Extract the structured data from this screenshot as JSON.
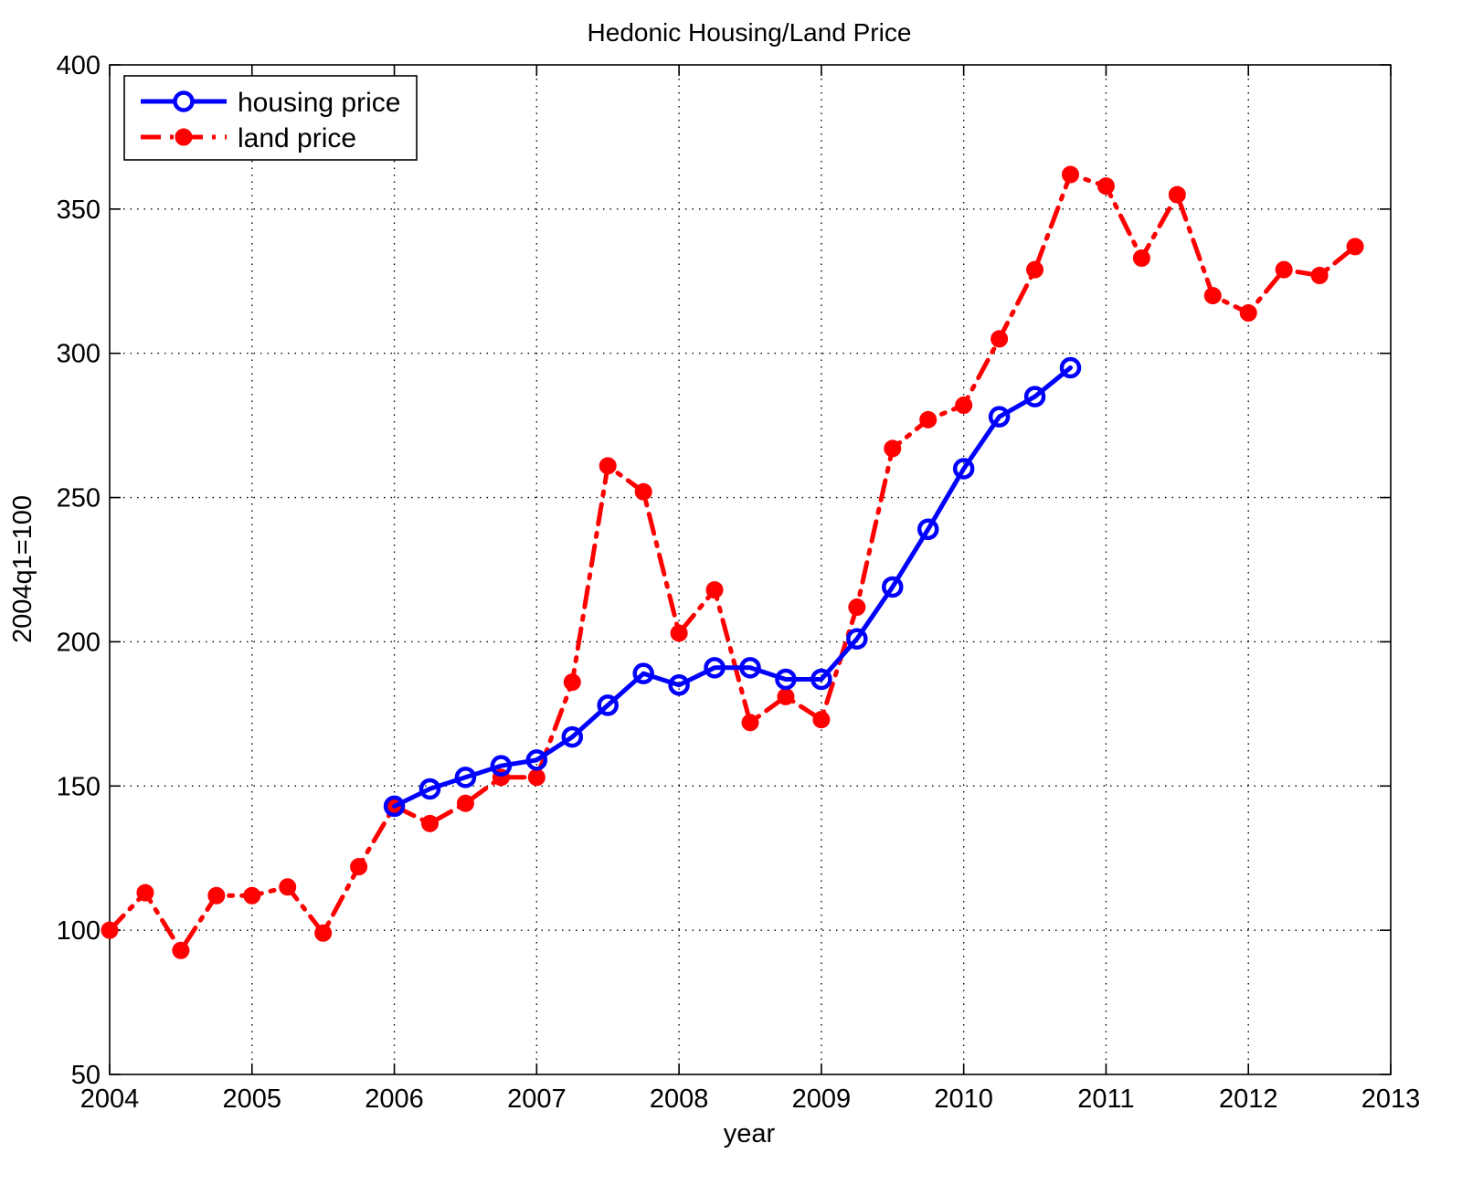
{
  "chart_data": {
    "type": "line",
    "title": "Hedonic Housing/Land Price",
    "xlabel": "year",
    "ylabel": "2004q1=100",
    "xlim": [
      2004,
      2013
    ],
    "ylim": [
      50,
      400
    ],
    "x_ticks": [
      2004,
      2005,
      2006,
      2007,
      2008,
      2009,
      2010,
      2011,
      2012,
      2013
    ],
    "y_ticks": [
      50,
      100,
      150,
      200,
      250,
      300,
      350,
      400
    ],
    "grid": true,
    "legend_position": "top-left",
    "series": [
      {
        "name": "housing price",
        "color": "#0000ff",
        "line_style": "solid",
        "marker": "open-circle",
        "x": [
          2006.0,
          2006.25,
          2006.5,
          2006.75,
          2007.0,
          2007.25,
          2007.5,
          2007.75,
          2008.0,
          2008.25,
          2008.5,
          2008.75,
          2009.0,
          2009.25,
          2009.5,
          2009.75,
          2010.0,
          2010.25,
          2010.5,
          2010.75
        ],
        "y": [
          143,
          149,
          153,
          157,
          159,
          167,
          178,
          189,
          185,
          191,
          191,
          187,
          187,
          201,
          219,
          239,
          260,
          278,
          285,
          295
        ]
      },
      {
        "name": "land price",
        "color": "#ff0000",
        "line_style": "dash-dot",
        "marker": "filled-circle",
        "x": [
          2004.0,
          2004.25,
          2004.5,
          2004.75,
          2005.0,
          2005.25,
          2005.5,
          2005.75,
          2006.0,
          2006.25,
          2006.5,
          2006.75,
          2007.0,
          2007.25,
          2007.5,
          2007.75,
          2008.0,
          2008.25,
          2008.5,
          2008.75,
          2009.0,
          2009.25,
          2009.5,
          2009.75,
          2010.0,
          2010.25,
          2010.5,
          2010.75,
          2011.0,
          2011.25,
          2011.5,
          2011.75,
          2012.0,
          2012.25,
          2012.5,
          2012.75
        ],
        "y": [
          100,
          113,
          93,
          112,
          112,
          115,
          99,
          122,
          143,
          137,
          144,
          153,
          153,
          186,
          261,
          252,
          203,
          218,
          172,
          181,
          173,
          212,
          267,
          277,
          282,
          305,
          329,
          362,
          358,
          333,
          355,
          320,
          314,
          329,
          327,
          337
        ]
      }
    ]
  }
}
